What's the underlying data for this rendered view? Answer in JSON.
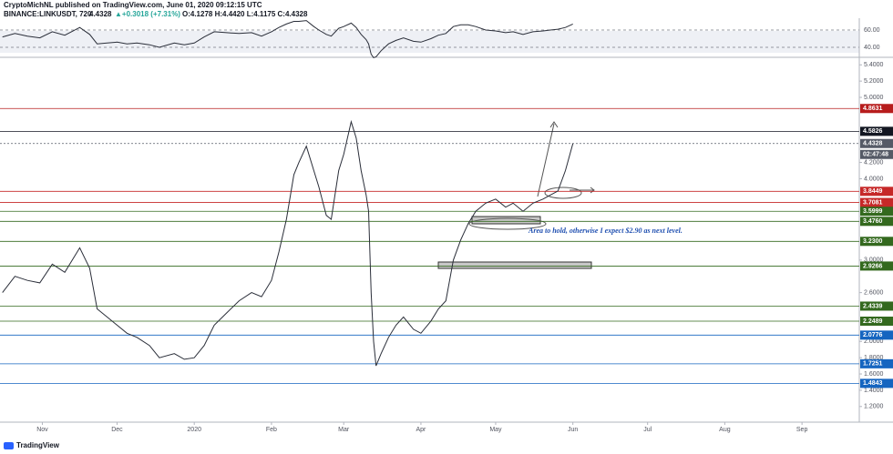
{
  "header": {
    "line1": "CryptoMichNL published on TradingView.com, June 01, 2020 09:12:15 UTC",
    "symbol": "BINANCE:LINKUSDT, 720",
    "last": "4.4328",
    "change": "▲+0.3018 (+7.31%)",
    "ohlc": "O:4.1278 H:4.4420 L:4.1175 C:4.4328"
  },
  "footer": "TradingView",
  "chart_data": {
    "type": "line",
    "x": [
      15,
      20,
      25,
      30,
      35,
      40,
      46,
      50,
      53,
      57,
      61,
      65,
      69,
      74,
      78,
      84,
      88,
      92,
      96,
      100,
      105,
      110,
      115,
      119,
      123,
      126,
      129,
      132,
      134,
      137,
      140,
      142,
      145,
      147,
      150,
      152,
      155,
      157,
      159,
      161,
      162,
      163,
      164,
      165,
      167,
      170,
      173,
      176,
      180,
      183,
      187,
      190,
      193,
      196,
      199,
      202,
      205,
      209,
      213,
      217,
      220,
      224,
      228,
      232,
      235,
      238,
      241,
      244
    ],
    "series": [
      {
        "name": "LINKUSDT",
        "color": "#2a2e39",
        "values": [
          2.6,
          2.8,
          2.75,
          2.72,
          2.95,
          2.85,
          3.15,
          2.9,
          2.4,
          2.3,
          2.2,
          2.1,
          2.05,
          1.95,
          1.8,
          1.85,
          1.78,
          1.8,
          1.95,
          2.2,
          2.35,
          2.5,
          2.6,
          2.55,
          2.75,
          3.1,
          3.5,
          4.05,
          4.2,
          4.4,
          4.1,
          3.9,
          3.55,
          3.5,
          4.1,
          4.3,
          4.7,
          4.5,
          4.1,
          3.8,
          3.6,
          2.6,
          2.0,
          1.7,
          1.85,
          2.05,
          2.2,
          2.3,
          2.15,
          2.1,
          2.25,
          2.4,
          2.5,
          3.0,
          3.25,
          3.45,
          3.6,
          3.7,
          3.75,
          3.65,
          3.7,
          3.6,
          3.7,
          3.75,
          3.8,
          3.85,
          4.1,
          4.4328
        ]
      },
      {
        "name": "RSI",
        "color": "#2a2e39",
        "axis": "rsi",
        "values": [
          52,
          56,
          53,
          51,
          58,
          54,
          63,
          55,
          44,
          45,
          46,
          44,
          45,
          43,
          40,
          45,
          43,
          45,
          52,
          58,
          57,
          56,
          57,
          53,
          58,
          63,
          67,
          70,
          70,
          71,
          64,
          60,
          55,
          53,
          62,
          64,
          68,
          63,
          55,
          49,
          44,
          32,
          28,
          29,
          36,
          44,
          48,
          51,
          47,
          46,
          50,
          54,
          56,
          64,
          66,
          66,
          64,
          60,
          59,
          57,
          58,
          55,
          58,
          59,
          60,
          61,
          63,
          67
        ]
      }
    ],
    "xlim": [
      14,
      359
    ],
    "xticks": [
      {
        "value": 31,
        "label": "Nov"
      },
      {
        "value": 61,
        "label": "Dec"
      },
      {
        "value": 92,
        "label": "2020"
      },
      {
        "value": 123,
        "label": "Feb"
      },
      {
        "value": 152,
        "label": "Mar"
      },
      {
        "value": 183,
        "label": "Apr"
      },
      {
        "value": 213,
        "label": "May"
      },
      {
        "value": 244,
        "label": "Jun"
      },
      {
        "value": 274,
        "label": "Jul"
      },
      {
        "value": 305,
        "label": "Aug"
      },
      {
        "value": 336,
        "label": "Sep"
      }
    ],
    "ylim": [
      1.03,
      5.47
    ],
    "yticks": [
      {
        "value": 5.4,
        "label": "5.4000"
      },
      {
        "value": 5.2,
        "label": "5.2000"
      },
      {
        "value": 5.0,
        "label": "5.0000"
      },
      {
        "value": 4.2,
        "label": "4.2000"
      },
      {
        "value": 4.0,
        "label": "4.0000"
      },
      {
        "value": 3.0,
        "label": "3.0000"
      },
      {
        "value": 2.6,
        "label": "2.6000"
      },
      {
        "value": 2.0,
        "label": "2.0000"
      },
      {
        "value": 1.8,
        "label": "1.8000"
      },
      {
        "value": 1.6,
        "label": "1.6000"
      },
      {
        "value": 1.4,
        "label": "1.4000"
      },
      {
        "value": 1.2,
        "label": "1.2000"
      }
    ],
    "rsilim": [
      29.5,
      73.7
    ],
    "rsiticks": [
      {
        "value": 60,
        "label": "60.00"
      },
      {
        "value": 40,
        "label": "40.00"
      }
    ],
    "levels": [
      {
        "value": 4.8631,
        "label": "4.8631",
        "color": "#b71c1c"
      },
      {
        "value": 4.5826,
        "label": "4.5826",
        "color": "#131722"
      },
      {
        "value": 4.4328,
        "label": "4.4328",
        "color": "#555a66"
      },
      {
        "value": 3.8449,
        "label": "3.8449",
        "color": "#c62828"
      },
      {
        "value": 3.7081,
        "label": "3.7081",
        "color": "#c62828"
      },
      {
        "value": 3.5999,
        "label": "3.5999",
        "color": "#33691e"
      },
      {
        "value": 3.476,
        "label": "3.4760",
        "color": "#33691e"
      },
      {
        "value": 3.23,
        "label": "3.2300",
        "color": "#33691e"
      },
      {
        "value": 2.9266,
        "label": "2.9266",
        "color": "#33691e"
      },
      {
        "value": 2.4339,
        "label": "2.4339",
        "color": "#33691e"
      },
      {
        "value": 2.2489,
        "label": "2.2489",
        "color": "#33691e"
      },
      {
        "value": 2.0776,
        "label": "2.0776",
        "color": "#1565c0"
      },
      {
        "value": 1.7251,
        "label": "1.7251",
        "color": "#1565c0"
      },
      {
        "value": 1.4843,
        "label": "1.4843",
        "color": "#1565c0"
      }
    ],
    "countdown": "02:47:48",
    "annotation": "Area to hold, otherwise I expect $2.90 as next level."
  }
}
